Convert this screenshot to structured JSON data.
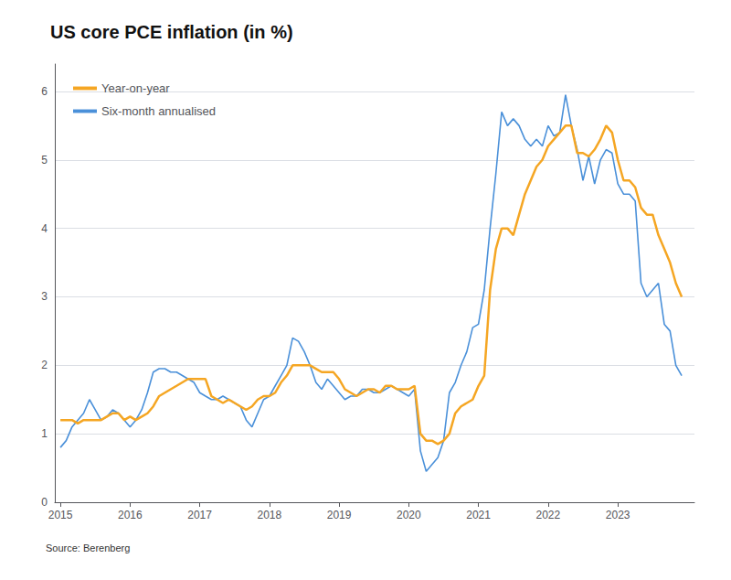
{
  "chart_data": {
    "type": "line",
    "title": "US core PCE inflation (in %)",
    "source": "Source: Berenberg",
    "xlim": [
      2014.92,
      2024.1
    ],
    "xticks": [
      2015,
      2016,
      2017,
      2018,
      2019,
      2020,
      2021,
      2022,
      2023
    ],
    "ylim": [
      0,
      6.4
    ],
    "yticks": [
      0,
      1,
      2,
      3,
      4,
      5,
      6
    ],
    "grid": true,
    "legend": "upper left",
    "x": [
      2015.0,
      2015.083,
      2015.167,
      2015.25,
      2015.333,
      2015.417,
      2015.5,
      2015.583,
      2015.667,
      2015.75,
      2015.833,
      2015.917,
      2016.0,
      2016.083,
      2016.167,
      2016.25,
      2016.333,
      2016.417,
      2016.5,
      2016.583,
      2016.667,
      2016.75,
      2016.833,
      2016.917,
      2017.0,
      2017.083,
      2017.167,
      2017.25,
      2017.333,
      2017.417,
      2017.5,
      2017.583,
      2017.667,
      2017.75,
      2017.833,
      2017.917,
      2018.0,
      2018.083,
      2018.167,
      2018.25,
      2018.333,
      2018.417,
      2018.5,
      2018.583,
      2018.667,
      2018.75,
      2018.833,
      2018.917,
      2019.0,
      2019.083,
      2019.167,
      2019.25,
      2019.333,
      2019.417,
      2019.5,
      2019.583,
      2019.667,
      2019.75,
      2019.833,
      2019.917,
      2020.0,
      2020.083,
      2020.167,
      2020.25,
      2020.333,
      2020.417,
      2020.5,
      2020.583,
      2020.667,
      2020.75,
      2020.833,
      2020.917,
      2021.0,
      2021.083,
      2021.167,
      2021.25,
      2021.333,
      2021.417,
      2021.5,
      2021.583,
      2021.667,
      2021.75,
      2021.833,
      2021.917,
      2022.0,
      2022.083,
      2022.167,
      2022.25,
      2022.333,
      2022.417,
      2022.5,
      2022.583,
      2022.667,
      2022.75,
      2022.833,
      2022.917,
      2023.0,
      2023.083,
      2023.167,
      2023.25,
      2023.333,
      2023.417,
      2023.5,
      2023.583,
      2023.667,
      2023.75,
      2023.833,
      2023.917
    ],
    "series": [
      {
        "name": "Year-on-year",
        "color": "#F5A623",
        "values": [
          1.2,
          1.2,
          1.2,
          1.15,
          1.2,
          1.2,
          1.2,
          1.2,
          1.25,
          1.3,
          1.3,
          1.2,
          1.25,
          1.2,
          1.25,
          1.3,
          1.4,
          1.55,
          1.6,
          1.65,
          1.7,
          1.75,
          1.8,
          1.8,
          1.8,
          1.8,
          1.55,
          1.5,
          1.45,
          1.5,
          1.45,
          1.4,
          1.35,
          1.4,
          1.5,
          1.55,
          1.55,
          1.6,
          1.75,
          1.85,
          2.0,
          2.0,
          2.0,
          2.0,
          1.95,
          1.9,
          1.9,
          1.9,
          1.8,
          1.65,
          1.6,
          1.55,
          1.6,
          1.65,
          1.65,
          1.6,
          1.7,
          1.7,
          1.65,
          1.65,
          1.65,
          1.7,
          1.0,
          0.9,
          0.9,
          0.85,
          0.9,
          1.0,
          1.3,
          1.4,
          1.45,
          1.5,
          1.7,
          1.85,
          3.1,
          3.7,
          4.0,
          4.0,
          3.9,
          4.2,
          4.5,
          4.7,
          4.9,
          5.0,
          5.2,
          5.3,
          5.4,
          5.5,
          5.5,
          5.1,
          5.1,
          5.05,
          5.15,
          5.3,
          5.5,
          5.4,
          5.0,
          4.7,
          4.7,
          4.6,
          4.3,
          4.2,
          4.2,
          3.9,
          3.7,
          3.5,
          3.2,
          3.0
        ]
      },
      {
        "name": "Six-month annualised",
        "color": "#4A90D9",
        "values": [
          0.8,
          0.9,
          1.1,
          1.2,
          1.3,
          1.5,
          1.35,
          1.2,
          1.25,
          1.35,
          1.3,
          1.2,
          1.1,
          1.2,
          1.35,
          1.6,
          1.9,
          1.95,
          1.95,
          1.9,
          1.9,
          1.85,
          1.8,
          1.75,
          1.6,
          1.55,
          1.5,
          1.5,
          1.55,
          1.5,
          1.45,
          1.4,
          1.2,
          1.1,
          1.3,
          1.5,
          1.55,
          1.7,
          1.85,
          2.0,
          2.4,
          2.35,
          2.2,
          2.0,
          1.75,
          1.65,
          1.8,
          1.7,
          1.6,
          1.5,
          1.55,
          1.55,
          1.65,
          1.65,
          1.6,
          1.6,
          1.65,
          1.7,
          1.65,
          1.6,
          1.55,
          1.65,
          0.75,
          0.45,
          0.55,
          0.65,
          0.9,
          1.6,
          1.75,
          2.0,
          2.2,
          2.55,
          2.6,
          3.1,
          4.0,
          4.8,
          5.7,
          5.5,
          5.6,
          5.5,
          5.3,
          5.2,
          5.3,
          5.2,
          5.5,
          5.35,
          5.4,
          5.95,
          5.5,
          5.15,
          4.7,
          5.05,
          4.65,
          5.0,
          5.15,
          5.1,
          4.65,
          4.5,
          4.5,
          4.4,
          3.2,
          3.0,
          3.1,
          3.2,
          2.6,
          2.5,
          2.0,
          1.85
        ]
      }
    ]
  }
}
